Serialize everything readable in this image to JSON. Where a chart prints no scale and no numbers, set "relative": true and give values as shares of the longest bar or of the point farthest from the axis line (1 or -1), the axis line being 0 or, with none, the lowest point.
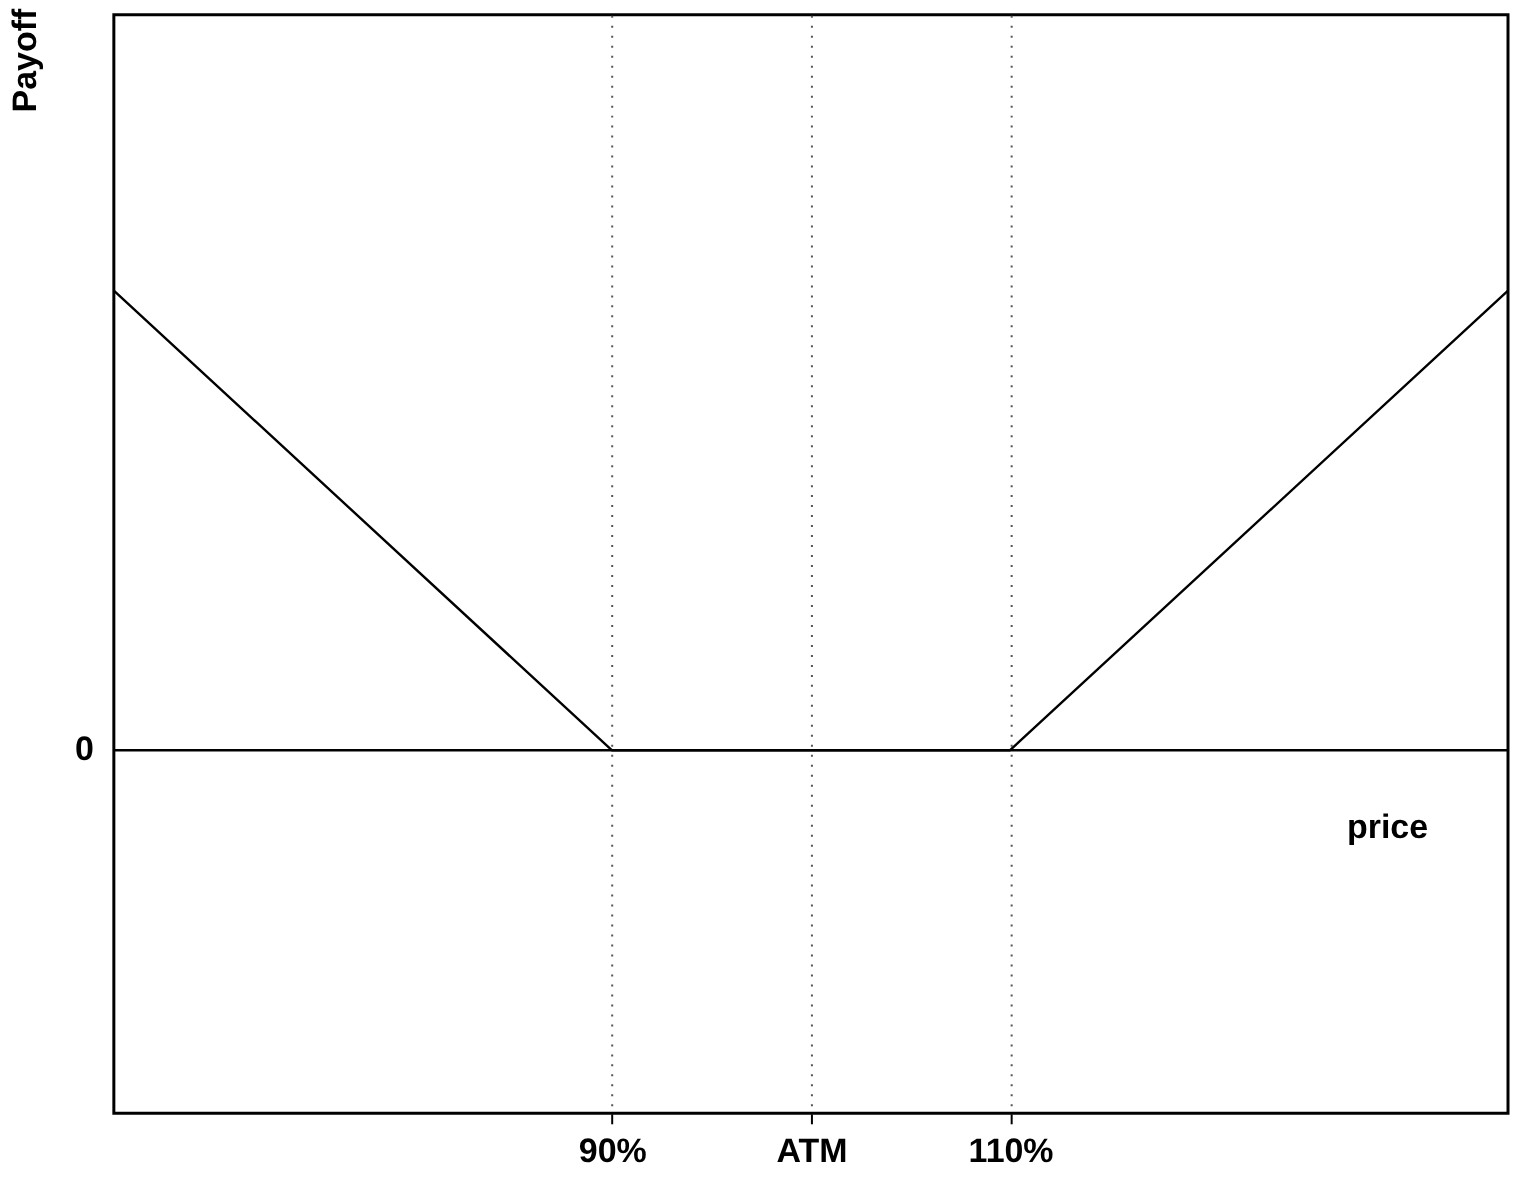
{
  "chart_data": {
    "type": "line",
    "relative": true,
    "annotations": [
      "Payoff"
    ],
    "xlabel": "price",
    "x": [
      65,
      90,
      110,
      135
    ],
    "values": [
      1,
      0,
      0,
      1
    ],
    "color": "#000000",
    "xlim": [
      65,
      135
    ],
    "xticks": [
      {
        "value": 90,
        "label": "90%"
      },
      {
        "value": 100,
        "label": "ATM"
      },
      {
        "value": 110,
        "label": "110%"
      }
    ],
    "ref_lines": [
      {
        "axis": "y",
        "value": 0,
        "label": "0",
        "color": "#000000"
      }
    ],
    "grid": "x",
    "line_style": "solid",
    "marker": "none"
  }
}
